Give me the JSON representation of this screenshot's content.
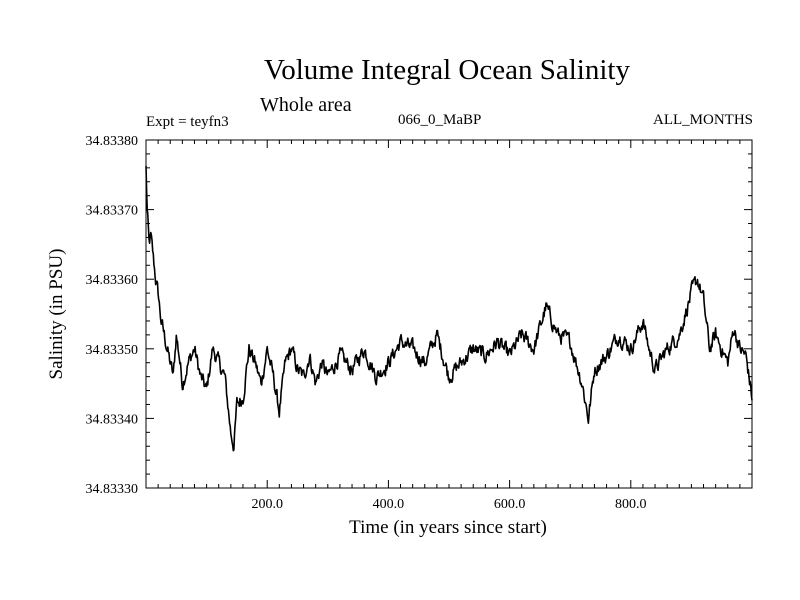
{
  "chart_data": {
    "type": "line",
    "title": "Volume Integral Ocean Salinity",
    "subtitle": "Whole area",
    "annotations": {
      "left": "Expt = teyfn3",
      "center": "066_0_MaBP",
      "right": "ALL_MONTHS"
    },
    "xlabel": "Time (in years since start)",
    "ylabel": "Salinity (in PSU)",
    "xlim": [
      0,
      1000
    ],
    "ylim": [
      34.8333,
      34.8338
    ],
    "x_ticks": [
      200,
      400,
      600,
      800
    ],
    "x_tick_labels": [
      "200.0",
      "400.0",
      "600.0",
      "800.0"
    ],
    "y_ticks": [
      34.8333,
      34.8334,
      34.8335,
      34.8336,
      34.8337,
      34.8338
    ],
    "y_tick_labels": [
      "34.83330",
      "34.83340",
      "34.83350",
      "34.83360",
      "34.83370",
      "34.83380"
    ],
    "grid": false,
    "series": [
      {
        "name": "Salinity",
        "x": [
          0,
          2,
          5,
          8,
          12,
          16,
          20,
          25,
          30,
          35,
          40,
          45,
          50,
          55,
          60,
          70,
          80,
          90,
          100,
          110,
          120,
          130,
          140,
          145,
          150,
          160,
          170,
          180,
          190,
          200,
          210,
          220,
          230,
          240,
          250,
          260,
          270,
          280,
          290,
          300,
          320,
          340,
          360,
          380,
          400,
          420,
          440,
          460,
          480,
          500,
          520,
          540,
          560,
          580,
          600,
          620,
          640,
          660,
          670,
          680,
          700,
          720,
          730,
          740,
          760,
          780,
          800,
          820,
          830,
          840,
          860,
          880,
          900,
          910,
          920,
          930,
          940,
          950,
          960,
          970,
          980,
          990,
          1000
        ],
        "values": [
          34.83376,
          34.8337,
          34.83365,
          34.83366,
          34.83363,
          34.8336,
          34.83358,
          34.83354,
          34.83352,
          34.8335,
          34.83348,
          34.83346,
          34.83352,
          34.83349,
          34.83345,
          34.83348,
          34.8335,
          34.83346,
          34.83344,
          34.8335,
          34.83348,
          34.83346,
          34.83338,
          34.83336,
          34.83342,
          34.83343,
          34.8335,
          34.83348,
          34.83345,
          34.8335,
          34.83346,
          34.83341,
          34.83348,
          34.8335,
          34.83347,
          34.83346,
          34.83349,
          34.83345,
          34.83348,
          34.83346,
          34.83349,
          34.83347,
          34.8335,
          34.83346,
          34.83348,
          34.83351,
          34.8335,
          34.83348,
          34.83352,
          34.83346,
          34.83348,
          34.8335,
          34.83349,
          34.83351,
          34.83349,
          34.83352,
          34.8335,
          34.83356,
          34.83354,
          34.83352,
          34.83351,
          34.83345,
          34.8334,
          34.83347,
          34.83349,
          34.83352,
          34.8335,
          34.83354,
          34.8335,
          34.83347,
          34.8335,
          34.83352,
          34.83358,
          34.8336,
          34.83357,
          34.8335,
          34.83352,
          34.8335,
          34.83348,
          34.83353,
          34.8335,
          34.83349,
          34.83343
        ]
      }
    ]
  }
}
